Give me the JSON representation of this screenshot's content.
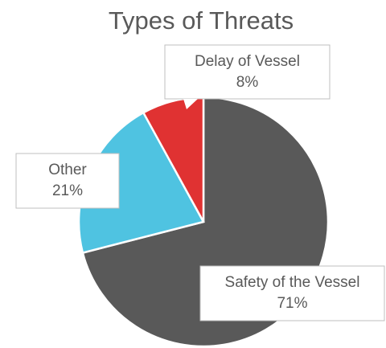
{
  "chart_data": {
    "type": "pie",
    "title": "Types of Threats",
    "categories": [
      "Safety of the Vessel",
      "Other",
      "Delay of Vessel"
    ],
    "values": [
      71,
      21,
      8
    ],
    "value_labels": [
      "71%",
      "21%",
      "8%"
    ],
    "colors": [
      "#595959",
      "#4fc3e1",
      "#e03232"
    ]
  }
}
